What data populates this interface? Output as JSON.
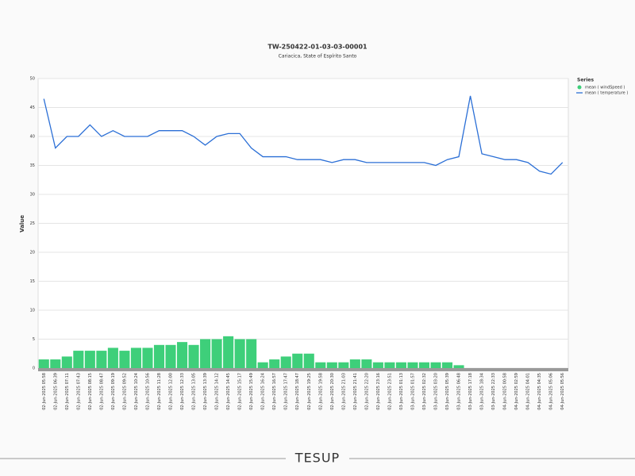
{
  "chart_data": {
    "type": "bar-line",
    "title": "TW-250422-01-03-03-00001",
    "subtitle": "Cariacica, State of Espírito Santo",
    "y_label": "Value",
    "legend_title": "Series",
    "legend_position": "right",
    "grid": true,
    "brand": "TESUP",
    "ylim": [
      0,
      50
    ],
    "yticks": [
      0,
      5,
      10,
      15,
      20,
      25,
      30,
      35,
      40,
      45,
      50
    ],
    "categories": [
      "02-Jun-2025 05:58",
      "02-Jun-2025 06:39",
      "02-Jun-2025 07:11",
      "02-Jun-2025 07:43",
      "02-Jun-2025 08:15",
      "02-Jun-2025 08:47",
      "02-Jun-2025 09:19",
      "02-Jun-2025 09:52",
      "02-Jun-2025 10:24",
      "02-Jun-2025 10:56",
      "02-Jun-2025 11:28",
      "02-Jun-2025 12:00",
      "02-Jun-2025 12:33",
      "02-Jun-2025 13:05",
      "02-Jun-2025 13:39",
      "02-Jun-2025 14:12",
      "02-Jun-2025 14:45",
      "02-Jun-2025 15:17",
      "02-Jun-2025 15:49",
      "02-Jun-2025 16:24",
      "02-Jun-2025 16:57",
      "02-Jun-2025 17:47",
      "02-Jun-2025 18:47",
      "02-Jun-2025 19:25",
      "02-Jun-2025 19:58",
      "02-Jun-2025 20:30",
      "02-Jun-2025 21:03",
      "02-Jun-2025 21:41",
      "02-Jun-2025 22:20",
      "02-Jun-2025 23:16",
      "02-Jun-2025 23:51",
      "03-Jun-2025 01:13",
      "03-Jun-2025 01:57",
      "03-Jun-2025 02:32",
      "03-Jun-2025 03:20",
      "03-Jun-2025 05:39",
      "03-Jun-2025 06:48",
      "03-Jun-2025 17:18",
      "03-Jun-2025 18:34",
      "03-Jun-2025 22:33",
      "04-Jun-2025 00:58",
      "04-Jun-2025 02:59",
      "04-Jun-2025 04:01",
      "04-Jun-2025 04:35",
      "04-Jun-2025 05:06",
      "04-Jun-2025 05:56"
    ],
    "series": [
      {
        "name": "mean ( windSpeed )",
        "type": "bar",
        "color": "#3ecf7a",
        "values": [
          1.5,
          1.5,
          2,
          3,
          3,
          3,
          3.5,
          3,
          3.5,
          3.5,
          4,
          4,
          4.5,
          4,
          5,
          5,
          5.5,
          5,
          5,
          1,
          1.5,
          2,
          2.5,
          2.5,
          1,
          1,
          1,
          1.5,
          1.5,
          1,
          1,
          1,
          1,
          1,
          1,
          1,
          0.5,
          0,
          0,
          0,
          0,
          0,
          0,
          0,
          0,
          0
        ]
      },
      {
        "name": "mean ( temperature )",
        "type": "line",
        "color": "#2b6fd6",
        "values": [
          46.5,
          38,
          40,
          40,
          42,
          40,
          41,
          40,
          40,
          40,
          41,
          41,
          41,
          40,
          38.5,
          40,
          40.5,
          40.5,
          38,
          36.5,
          36.5,
          36.5,
          36,
          36,
          36,
          35.5,
          36,
          36,
          35.5,
          35.5,
          35.5,
          35.5,
          35.5,
          35.5,
          35,
          36,
          36.5,
          47,
          37,
          36.5,
          36,
          36,
          35.5,
          34,
          33.5,
          35.5
        ]
      }
    ]
  }
}
